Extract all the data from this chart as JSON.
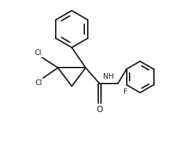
{
  "bg_color": "#ffffff",
  "line_color": "#1a1a1a",
  "line_width": 1.4,
  "font_size": 7.5,
  "figsize": [
    2.67,
    2.04
  ],
  "dpi": 100,
  "xlim": [
    0,
    10
  ],
  "ylim": [
    0,
    7.65
  ]
}
